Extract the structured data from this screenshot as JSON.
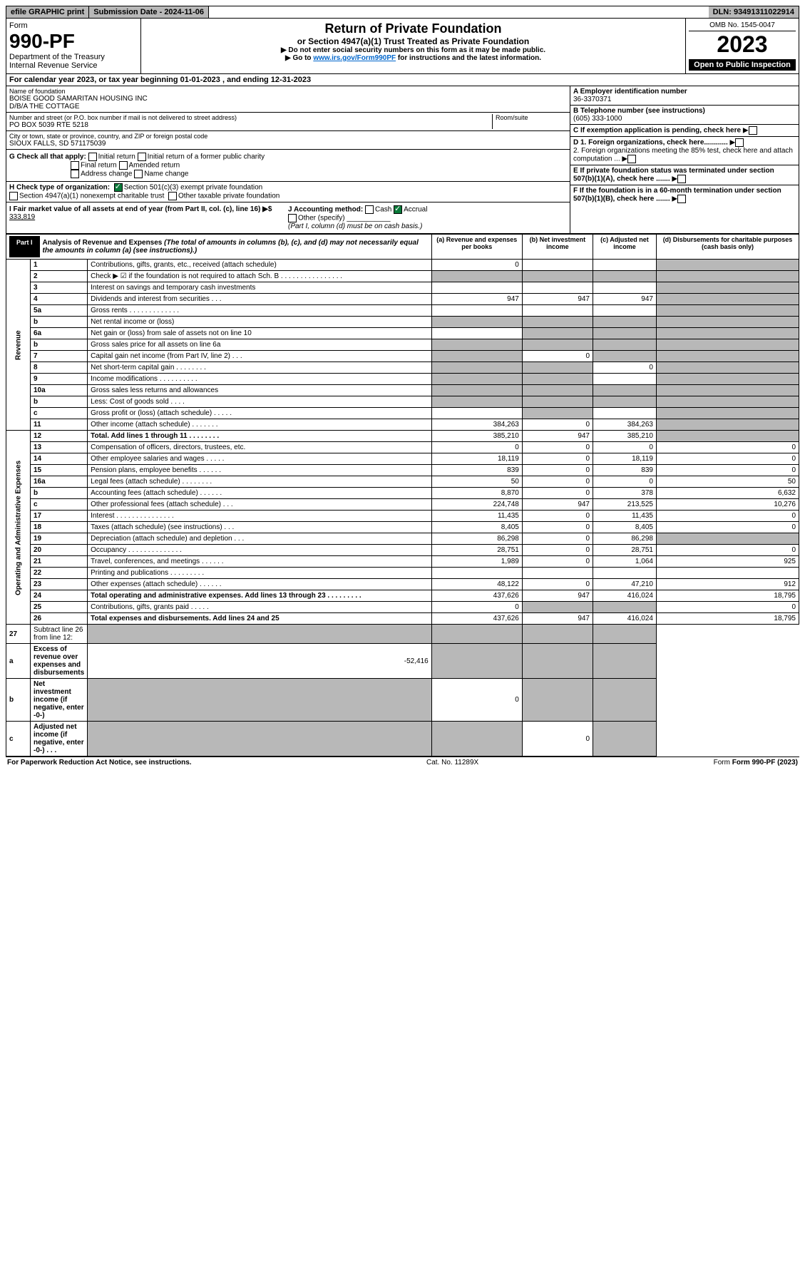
{
  "topbar": {
    "efile": "efile GRAPHIC print",
    "sub": "Submission Date - 2024-11-06",
    "dln": "DLN: 93491311022914"
  },
  "header": {
    "form_label": "Form",
    "form_no": "990-PF",
    "dept": "Department of the Treasury",
    "irs": "Internal Revenue Service",
    "title": "Return of Private Foundation",
    "subtitle": "or Section 4947(a)(1) Trust Treated as Private Foundation",
    "instr1": "▶ Do not enter social security numbers on this form as it may be made public.",
    "instr2": "▶ Go to ",
    "link": "www.irs.gov/Form990PF",
    "instr3": " for instructions and the latest information.",
    "omb": "OMB No. 1545-0047",
    "year": "2023",
    "inspect": "Open to Public Inspection"
  },
  "calyear": "For calendar year 2023, or tax year beginning 01-01-2023              , and ending 12-31-2023",
  "name_label": "Name of foundation",
  "name1": "BOISE GOOD SAMARITAN HOUSING INC",
  "name2": "D/B/A THE COTTAGE",
  "addr_label": "Number and street (or P.O. box number if mail is not delivered to street address)",
  "addr": "PO BOX 5039 RTE 5218",
  "room_label": "Room/suite",
  "city_label": "City or town, state or province, country, and ZIP or foreign postal code",
  "city": "SIOUX FALLS, SD  571175039",
  "A_label": "A Employer identification number",
  "A": "36-3370371",
  "B_label": "B Telephone number (see instructions)",
  "B": "(605) 333-1000",
  "C": "C If exemption application is pending, check here",
  "D1": "D 1. Foreign organizations, check here............",
  "D2": "2. Foreign organizations meeting the 85% test, check here and attach computation ...",
  "E": "E If private foundation status was terminated under section 507(b)(1)(A), check here .......",
  "F": "F If the foundation is in a 60-month termination under section 507(b)(1)(B), check here .......",
  "G": "G Check all that apply:",
  "G_items": [
    "Initial return",
    "Initial return of a former public charity",
    "Final return",
    "Amended return",
    "Address change",
    "Name change"
  ],
  "H": "H Check type of organization:",
  "H1": "Section 501(c)(3) exempt private foundation",
  "H2": "Section 4947(a)(1) nonexempt charitable trust",
  "H3": "Other taxable private foundation",
  "I": "I Fair market value of all assets at end of year (from Part II, col. (c), line 16) ▶$ ",
  "I_val": "333,819",
  "J": "J Accounting method:",
  "J_cash": "Cash",
  "J_acc": "Accrual",
  "J_other": "Other (specify)",
  "J_note": "(Part I, column (d) must be on cash basis.)",
  "part1": {
    "tab": "Part I",
    "title": "Analysis of Revenue and Expenses",
    "note": "(The total of amounts in columns (b), (c), and (d) may not necessarily equal the amounts in column (a) (see instructions).)"
  },
  "cols": {
    "a": "(a)",
    "a2": "Revenue and expenses per books",
    "b": "(b)",
    "b2": "Net investment income",
    "c": "(c)",
    "c2": "Adjusted net income",
    "d": "(d)",
    "d2": "Disbursements for charitable purposes (cash basis only)"
  },
  "vlabels": {
    "rev": "Revenue",
    "exp": "Operating and Administrative Expenses"
  },
  "rows": [
    {
      "n": "1",
      "d": "Contributions, gifts, grants, etc., received (attach schedule)",
      "a": "0",
      "shade": [
        "d"
      ]
    },
    {
      "n": "2",
      "d": "Check ▶ ☑ if the foundation is not required to attach Sch. B  . . . . . . . . . . . . . . . .",
      "shade": [
        "a",
        "b",
        "c",
        "d"
      ]
    },
    {
      "n": "3",
      "d": "Interest on savings and temporary cash investments",
      "shade": [
        "d"
      ]
    },
    {
      "n": "4",
      "d": "Dividends and interest from securities    . . .",
      "a": "947",
      "b": "947",
      "c": "947",
      "shade": [
        "d"
      ]
    },
    {
      "n": "5a",
      "d": "Gross rents   . . . . . . . . . . . . .",
      "shade": [
        "d"
      ]
    },
    {
      "n": "b",
      "d": "Net rental income or (loss)",
      "shade": [
        "a",
        "b",
        "c",
        "d"
      ]
    },
    {
      "n": "6a",
      "d": "Net gain or (loss) from sale of assets not on line 10",
      "shade": [
        "b",
        "c",
        "d"
      ]
    },
    {
      "n": "b",
      "d": "Gross sales price for all assets on line 6a",
      "shade": [
        "a",
        "b",
        "c",
        "d"
      ]
    },
    {
      "n": "7",
      "d": "Capital gain net income (from Part IV, line 2)   . . .",
      "b": "0",
      "shade": [
        "a",
        "c",
        "d"
      ]
    },
    {
      "n": "8",
      "d": "Net short-term capital gain . . . . . . . .",
      "c": "0",
      "shade": [
        "a",
        "b",
        "d"
      ]
    },
    {
      "n": "9",
      "d": "Income modifications . . . . . . . . . .",
      "shade": [
        "a",
        "b",
        "d"
      ]
    },
    {
      "n": "10a",
      "d": "Gross sales less returns and allowances",
      "shade": [
        "a",
        "b",
        "c",
        "d"
      ]
    },
    {
      "n": "b",
      "d": "Less: Cost of goods sold   . . . .",
      "shade": [
        "a",
        "b",
        "c",
        "d"
      ]
    },
    {
      "n": "c",
      "d": "Gross profit or (loss) (attach schedule)   . . . . .",
      "shade": [
        "b",
        "d"
      ]
    },
    {
      "n": "11",
      "d": "Other income (attach schedule)  . . . . . . .",
      "a": "384,263",
      "b": "0",
      "c": "384,263",
      "shade": [
        "d"
      ]
    },
    {
      "n": "12",
      "d": "Total. Add lines 1 through 11  . . . . . . . .",
      "a": "385,210",
      "b": "947",
      "c": "385,210",
      "bold": true,
      "shade": [
        "d"
      ]
    },
    {
      "n": "13",
      "d": "Compensation of officers, directors, trustees, etc.",
      "a": "0",
      "b": "0",
      "c": "0",
      "dv": "0"
    },
    {
      "n": "14",
      "d": "Other employee salaries and wages  . . . . .",
      "a": "18,119",
      "b": "0",
      "c": "18,119",
      "dv": "0"
    },
    {
      "n": "15",
      "d": "Pension plans, employee benefits . . . . . .",
      "a": "839",
      "b": "0",
      "c": "839",
      "dv": "0"
    },
    {
      "n": "16a",
      "d": "Legal fees (attach schedule) . . . . . . . .",
      "a": "50",
      "b": "0",
      "c": "0",
      "dv": "50"
    },
    {
      "n": "b",
      "d": "Accounting fees (attach schedule) . . . . . .",
      "a": "8,870",
      "b": "0",
      "c": "378",
      "dv": "6,632"
    },
    {
      "n": "c",
      "d": "Other professional fees (attach schedule)   . . .",
      "a": "224,748",
      "b": "947",
      "c": "213,525",
      "dv": "10,276"
    },
    {
      "n": "17",
      "d": "Interest . . . . . . . . . . . . . . .",
      "a": "11,435",
      "b": "0",
      "c": "11,435",
      "dv": "0"
    },
    {
      "n": "18",
      "d": "Taxes (attach schedule) (see instructions)   . . .",
      "a": "8,405",
      "b": "0",
      "c": "8,405",
      "dv": "0"
    },
    {
      "n": "19",
      "d": "Depreciation (attach schedule) and depletion   . . .",
      "a": "86,298",
      "b": "0",
      "c": "86,298",
      "shade": [
        "d"
      ]
    },
    {
      "n": "20",
      "d": "Occupancy . . . . . . . . . . . . . .",
      "a": "28,751",
      "b": "0",
      "c": "28,751",
      "dv": "0"
    },
    {
      "n": "21",
      "d": "Travel, conferences, and meetings . . . . . .",
      "a": "1,989",
      "b": "0",
      "c": "1,064",
      "dv": "925"
    },
    {
      "n": "22",
      "d": "Printing and publications . . . . . . . . ."
    },
    {
      "n": "23",
      "d": "Other expenses (attach schedule) . . . . . .",
      "a": "48,122",
      "b": "0",
      "c": "47,210",
      "dv": "912"
    },
    {
      "n": "24",
      "d": "Total operating and administrative expenses. Add lines 13 through 23  . . . . . . . . .",
      "a": "437,626",
      "b": "947",
      "c": "416,024",
      "dv": "18,795",
      "bold": true
    },
    {
      "n": "25",
      "d": "Contributions, gifts, grants paid   . . . . .",
      "a": "0",
      "dv": "0",
      "shade": [
        "b",
        "c"
      ]
    },
    {
      "n": "26",
      "d": "Total expenses and disbursements. Add lines 24 and 25",
      "a": "437,626",
      "b": "947",
      "c": "416,024",
      "dv": "18,795",
      "bold": true
    },
    {
      "n": "27",
      "d": "Subtract line 26 from line 12:",
      "shade": [
        "a",
        "b",
        "c",
        "d"
      ]
    },
    {
      "n": "a",
      "d": "Excess of revenue over expenses and disbursements",
      "a": "-52,416",
      "bold": true,
      "shade": [
        "b",
        "c",
        "d"
      ]
    },
    {
      "n": "b",
      "d": "Net investment income (if negative, enter -0-)",
      "b": "0",
      "bold": true,
      "shade": [
        "a",
        "c",
        "d"
      ]
    },
    {
      "n": "c",
      "d": "Adjusted net income (if negative, enter -0-)  . . .",
      "c": "0",
      "bold": true,
      "shade": [
        "a",
        "b",
        "d"
      ]
    }
  ],
  "footer": {
    "left": "For Paperwork Reduction Act Notice, see instructions.",
    "mid": "Cat. No. 11289X",
    "right": "Form 990-PF (2023)"
  }
}
